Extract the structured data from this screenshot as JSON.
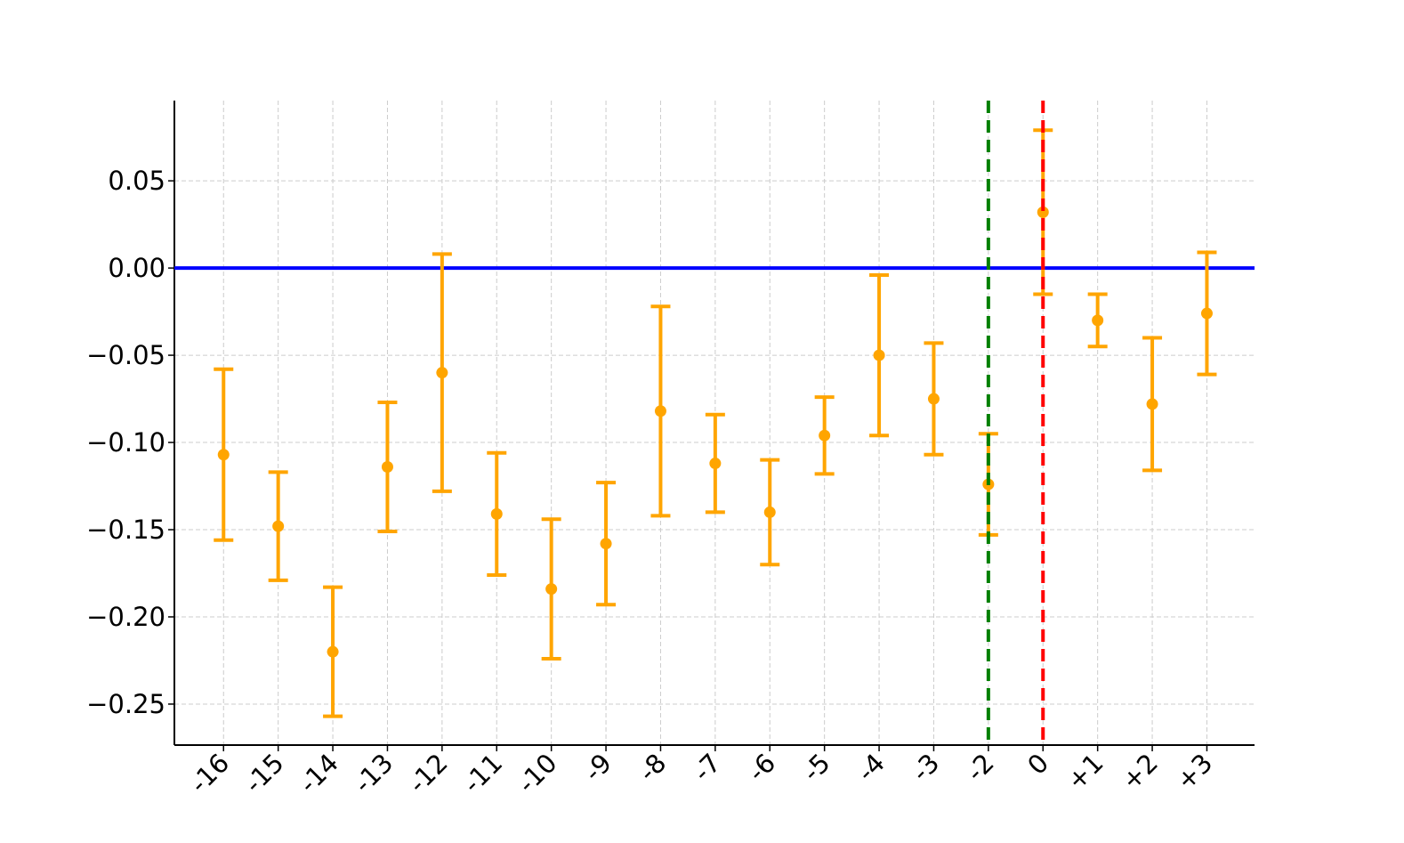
{
  "chart_data": {
    "type": "errorbar",
    "categories": [
      "-16",
      "-15",
      "-14",
      "-13",
      "-12",
      "-11",
      "-10",
      "-9",
      "-8",
      "-7",
      "-6",
      "-5",
      "-4",
      "-3",
      "-2",
      "0",
      "+1",
      "+2",
      "+3"
    ],
    "values": [
      -0.107,
      -0.148,
      -0.22,
      -0.114,
      -0.06,
      -0.141,
      -0.184,
      -0.158,
      -0.082,
      -0.112,
      -0.14,
      -0.096,
      -0.05,
      -0.075,
      -0.124,
      0.032,
      -0.03,
      -0.078,
      -0.026
    ],
    "errors": [
      0.049,
      0.031,
      0.037,
      0.037,
      0.068,
      0.035,
      0.04,
      0.035,
      0.06,
      0.028,
      0.03,
      0.022,
      0.046,
      0.032,
      0.029,
      0.047,
      0.015,
      0.038,
      0.035
    ],
    "color": "#ffa500",
    "ylim": [
      -0.2735,
      0.096
    ],
    "yticks": [
      {
        "value": -0.25,
        "label": "−0.25"
      },
      {
        "value": -0.2,
        "label": "−0.20"
      },
      {
        "value": -0.15,
        "label": "−0.15"
      },
      {
        "value": -0.1,
        "label": "−0.10"
      },
      {
        "value": -0.05,
        "label": "−0.05"
      },
      {
        "value": 0,
        "label": "0.00"
      },
      0.05
    ],
    "grid": true,
    "hlines": [
      {
        "y": 0,
        "color": "#0000ff",
        "style": "solid"
      }
    ],
    "vlines": [
      {
        "x": 14,
        "color": "#008000",
        "style": "dashed"
      },
      {
        "x": 15,
        "color": "#ff0000",
        "style": "dashed"
      }
    ]
  }
}
